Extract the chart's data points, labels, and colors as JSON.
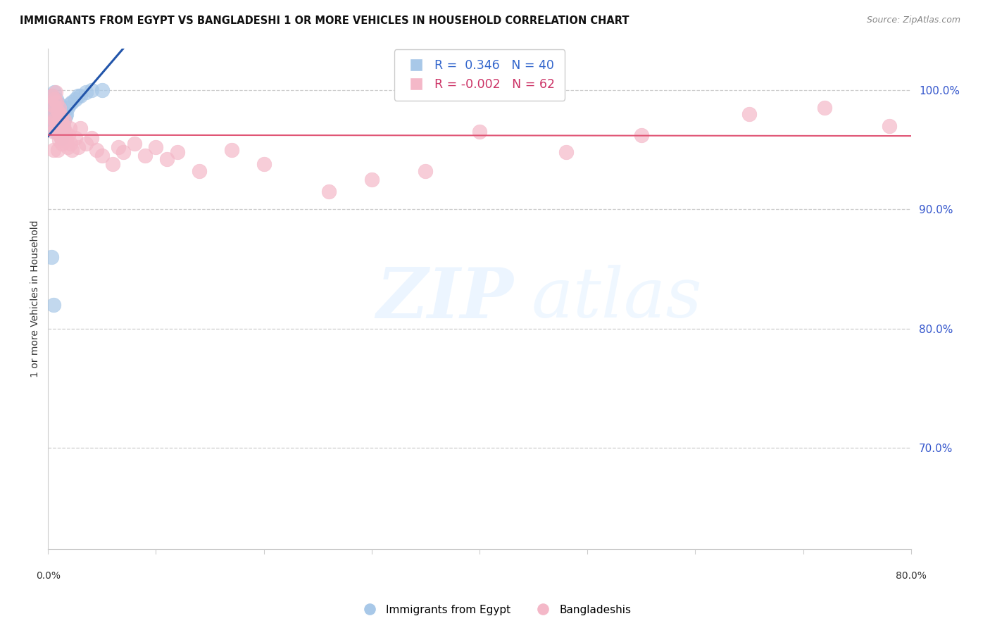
{
  "title": "IMMIGRANTS FROM EGYPT VS BANGLADESHI 1 OR MORE VEHICLES IN HOUSEHOLD CORRELATION CHART",
  "source": "Source: ZipAtlas.com",
  "ylabel": "1 or more Vehicles in Household",
  "right_yticks": [
    0.7,
    0.8,
    0.9,
    1.0
  ],
  "right_yticklabels": [
    "70.0%",
    "80.0%",
    "90.0%",
    "100.0%"
  ],
  "xlim": [
    0.0,
    0.8
  ],
  "ylim": [
    0.615,
    1.035
  ],
  "egypt_R": 0.346,
  "egypt_N": 40,
  "bangla_R": -0.002,
  "bangla_N": 62,
  "egypt_color": "#a8c8e8",
  "bangla_color": "#f4b8c8",
  "egypt_line_color": "#2255aa",
  "bangla_line_color": "#e05575",
  "legend_label_egypt": "Immigrants from Egypt",
  "legend_label_bangla": "Bangladeshis",
  "egypt_x": [
    0.002,
    0.003,
    0.003,
    0.004,
    0.004,
    0.005,
    0.005,
    0.005,
    0.006,
    0.006,
    0.006,
    0.007,
    0.007,
    0.007,
    0.008,
    0.008,
    0.009,
    0.009,
    0.01,
    0.01,
    0.011,
    0.011,
    0.012,
    0.012,
    0.013,
    0.014,
    0.015,
    0.016,
    0.017,
    0.018,
    0.02,
    0.022,
    0.025,
    0.028,
    0.03,
    0.035,
    0.04,
    0.05,
    0.003,
    0.005
  ],
  "egypt_y": [
    0.97,
    0.975,
    0.98,
    0.968,
    0.995,
    0.99,
    0.985,
    0.972,
    0.998,
    0.992,
    0.975,
    0.988,
    0.98,
    0.965,
    0.992,
    0.978,
    0.985,
    0.97,
    0.988,
    0.975,
    0.982,
    0.965,
    0.978,
    0.96,
    0.97,
    0.968,
    0.975,
    0.978,
    0.98,
    0.985,
    0.988,
    0.99,
    0.992,
    0.995,
    0.995,
    0.998,
    1.0,
    1.0,
    0.86,
    0.82
  ],
  "bangla_x": [
    0.003,
    0.004,
    0.004,
    0.005,
    0.005,
    0.005,
    0.006,
    0.006,
    0.007,
    0.007,
    0.007,
    0.008,
    0.008,
    0.009,
    0.009,
    0.009,
    0.01,
    0.01,
    0.01,
    0.011,
    0.011,
    0.012,
    0.012,
    0.013,
    0.013,
    0.014,
    0.015,
    0.015,
    0.016,
    0.017,
    0.018,
    0.019,
    0.02,
    0.021,
    0.022,
    0.025,
    0.028,
    0.03,
    0.035,
    0.04,
    0.045,
    0.05,
    0.06,
    0.065,
    0.07,
    0.08,
    0.09,
    0.1,
    0.11,
    0.12,
    0.14,
    0.17,
    0.2,
    0.26,
    0.3,
    0.35,
    0.4,
    0.48,
    0.55,
    0.65,
    0.72,
    0.78
  ],
  "bangla_y": [
    0.988,
    0.995,
    0.972,
    0.98,
    0.965,
    0.95,
    0.992,
    0.975,
    0.998,
    0.985,
    0.968,
    0.99,
    0.972,
    0.982,
    0.965,
    0.95,
    0.985,
    0.975,
    0.958,
    0.98,
    0.962,
    0.978,
    0.96,
    0.972,
    0.955,
    0.97,
    0.975,
    0.958,
    0.965,
    0.958,
    0.952,
    0.962,
    0.968,
    0.955,
    0.95,
    0.96,
    0.952,
    0.968,
    0.955,
    0.96,
    0.95,
    0.945,
    0.938,
    0.952,
    0.948,
    0.955,
    0.945,
    0.952,
    0.942,
    0.948,
    0.932,
    0.95,
    0.938,
    0.915,
    0.925,
    0.932,
    0.965,
    0.948,
    0.962,
    0.98,
    0.985,
    0.97
  ],
  "bangla_trend_y": [
    0.965,
    0.965
  ],
  "xtick_positions": [
    0.0,
    0.1,
    0.2,
    0.3,
    0.4,
    0.5,
    0.6,
    0.7,
    0.8
  ],
  "grid_color": "#cccccc",
  "spine_color": "#cccccc"
}
